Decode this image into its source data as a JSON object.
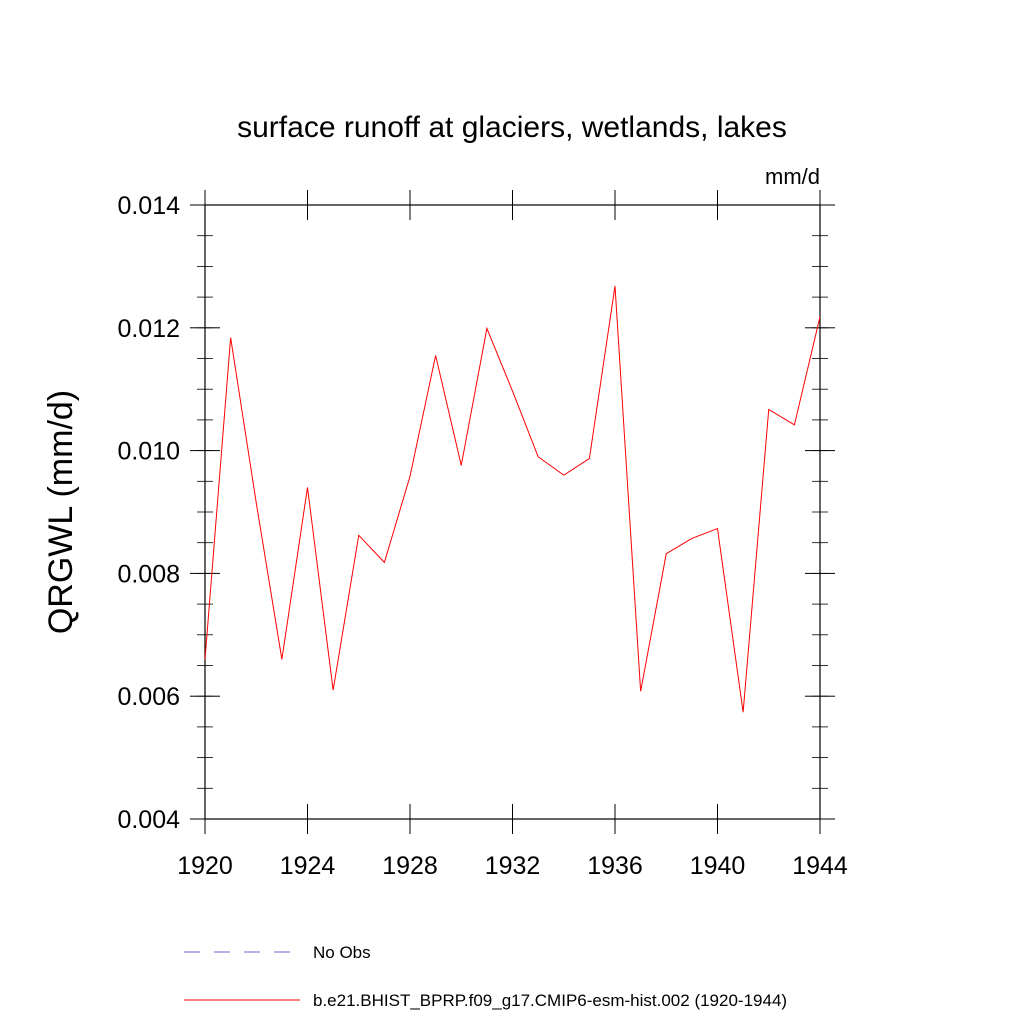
{
  "chart_data": {
    "type": "line",
    "title": "surface runoff at glaciers, wetlands, lakes",
    "units": "mm/d",
    "ylabel": "QRGWL  (mm/d)",
    "xlabel": "",
    "xlim": [
      1920,
      1944
    ],
    "ylim": [
      0.004,
      0.014
    ],
    "x_ticks": [
      1920,
      1924,
      1928,
      1932,
      1936,
      1940,
      1944
    ],
    "x_tick_labels": [
      "1920",
      "1924",
      "1928",
      "1932",
      "1936",
      "1940",
      "1944"
    ],
    "y_ticks": [
      0.004,
      0.006,
      0.008,
      0.01,
      0.012,
      0.014
    ],
    "y_tick_labels": [
      "0.004",
      "0.006",
      "0.008",
      "0.010",
      "0.012",
      "0.014"
    ],
    "grid": false,
    "legend_position": "bottom",
    "series": [
      {
        "name": "b.e21.BHIST_BPRP.f09_g17.CMIP6-esm-hist.002 (1920-1944)",
        "color": "#ff0000",
        "style": "solid",
        "x": [
          1920,
          1921,
          1922,
          1923,
          1924,
          1925,
          1926,
          1927,
          1928,
          1929,
          1930,
          1931,
          1932,
          1933,
          1934,
          1935,
          1936,
          1937,
          1938,
          1939,
          1940,
          1941,
          1942,
          1943,
          1944
        ],
        "values": [
          0.0066,
          0.01184,
          0.00915,
          0.0066,
          0.0094,
          0.0061,
          0.00862,
          0.00818,
          0.00958,
          0.01155,
          0.00976,
          0.01199,
          0.01097,
          0.0099,
          0.0096,
          0.00987,
          0.01268,
          0.00608,
          0.00832,
          0.00857,
          0.00873,
          0.00574,
          0.01067,
          0.01042,
          0.01218
        ]
      }
    ],
    "legend": [
      {
        "label": "No Obs",
        "color": "#6a6ad0",
        "style": "dashed"
      },
      {
        "label": "b.e21.BHIST_BPRP.f09_g17.CMIP6-esm-hist.002 (1920-1944)",
        "color": "#ff0000",
        "style": "solid"
      }
    ]
  }
}
